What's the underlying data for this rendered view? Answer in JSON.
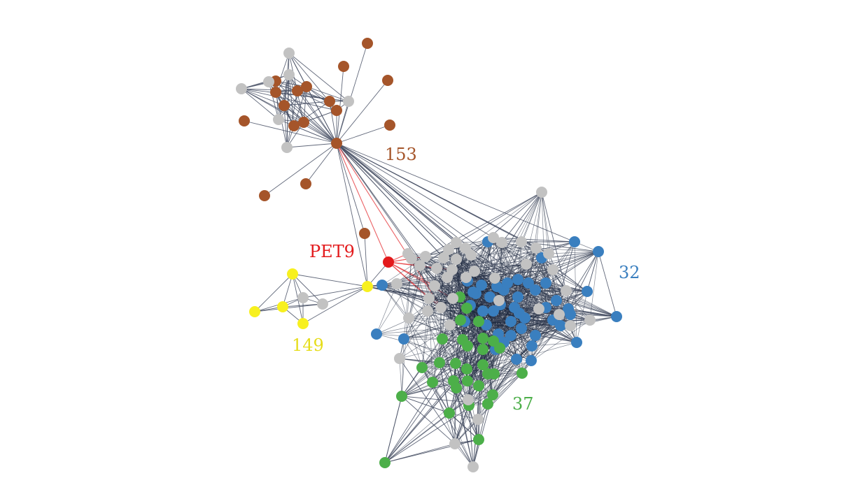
{
  "labels": {
    "c153": "153",
    "pet9": "PET9",
    "c32": "32",
    "c149": "149",
    "c37": "37"
  },
  "colors": {
    "c153": "#a5552a",
    "pet9": "#e31a1c",
    "c32": "#3a7fbf",
    "c149": "#f7f01f",
    "c37": "#4caf49",
    "other": "#c2c2c2",
    "edge": "#3d455c",
    "highlight_edge": "#e8474a"
  }
}
